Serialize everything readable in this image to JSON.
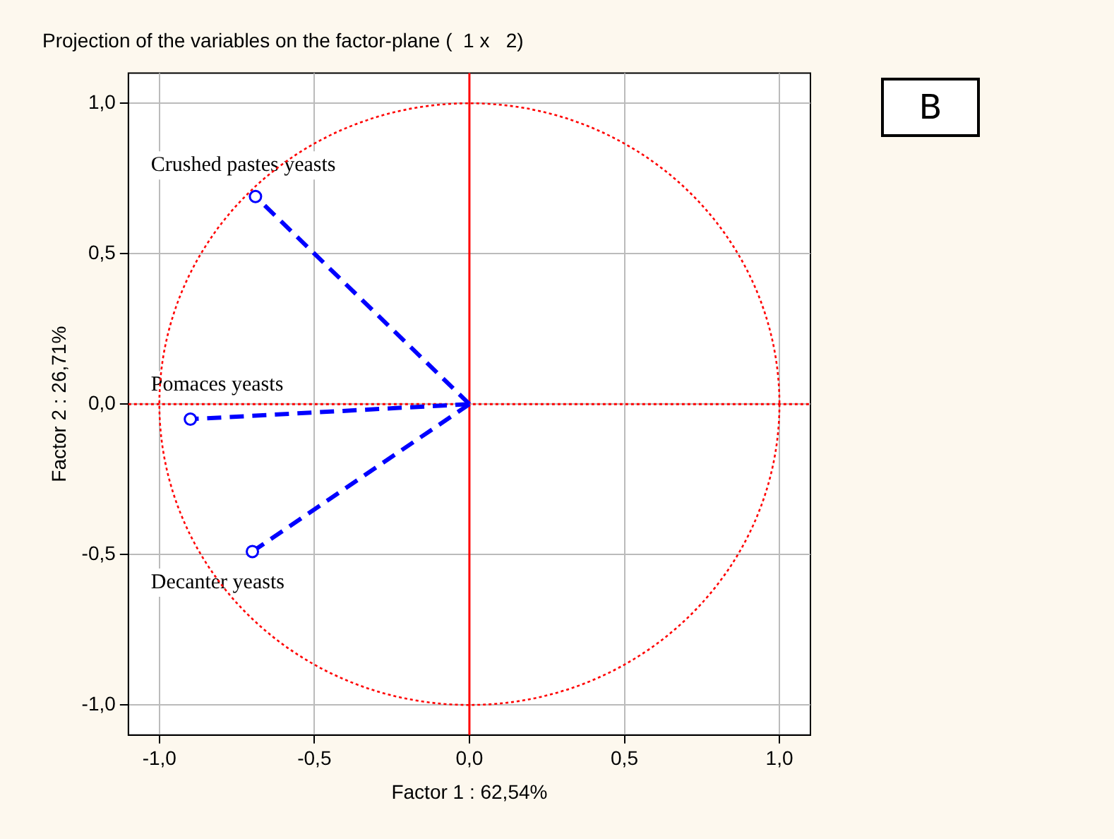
{
  "chart_data": {
    "type": "line",
    "title": "Projection of the variables on the factor-plane (  1 x   2)",
    "xlabel": "Factor 1 : 62,54%",
    "ylabel": "Factor 2 : 26,71%",
    "xlim": [
      -1.1,
      1.1
    ],
    "ylim": [
      -1.1,
      1.1
    ],
    "xticks": [
      {
        "value": -1,
        "label": "-1,0"
      },
      {
        "value": -0.5,
        "label": "-0,5"
      },
      {
        "value": 0,
        "label": "0,0"
      },
      {
        "value": 0.5,
        "label": "0,5"
      },
      {
        "value": 1,
        "label": "1,0"
      }
    ],
    "yticks": [
      {
        "value": -1,
        "label": "-1,0"
      },
      {
        "value": -0.5,
        "label": "-0,5"
      },
      {
        "value": 0,
        "label": "0,0"
      },
      {
        "value": 0.5,
        "label": "0,5"
      },
      {
        "value": 1,
        "label": "1,0"
      }
    ],
    "grid": true,
    "legend": false,
    "series": [
      {
        "name": "Crushed pastes yeasts",
        "color": "#0000ff",
        "line_style": "dashed",
        "marker": "circle",
        "x": [
          0,
          -0.69
        ],
        "values": [
          0,
          0.69
        ]
      },
      {
        "name": "Pomaces yeasts",
        "color": "#0000ff",
        "line_style": "dashed",
        "marker": "circle",
        "x": [
          0,
          -0.9
        ],
        "values": [
          0,
          -0.05
        ]
      },
      {
        "name": "Decanter yeasts",
        "color": "#0000ff",
        "line_style": "dashed",
        "marker": "circle",
        "x": [
          0,
          -0.7
        ],
        "values": [
          0,
          -0.49
        ]
      }
    ],
    "ref_lines": [
      {
        "axis": "x",
        "value": 0,
        "color": "#ff0000",
        "line_style": "solid"
      },
      {
        "axis": "y",
        "value": 0,
        "color": "#ff0000",
        "line_style": "dotted"
      }
    ],
    "annotations": [
      "B"
    ]
  }
}
